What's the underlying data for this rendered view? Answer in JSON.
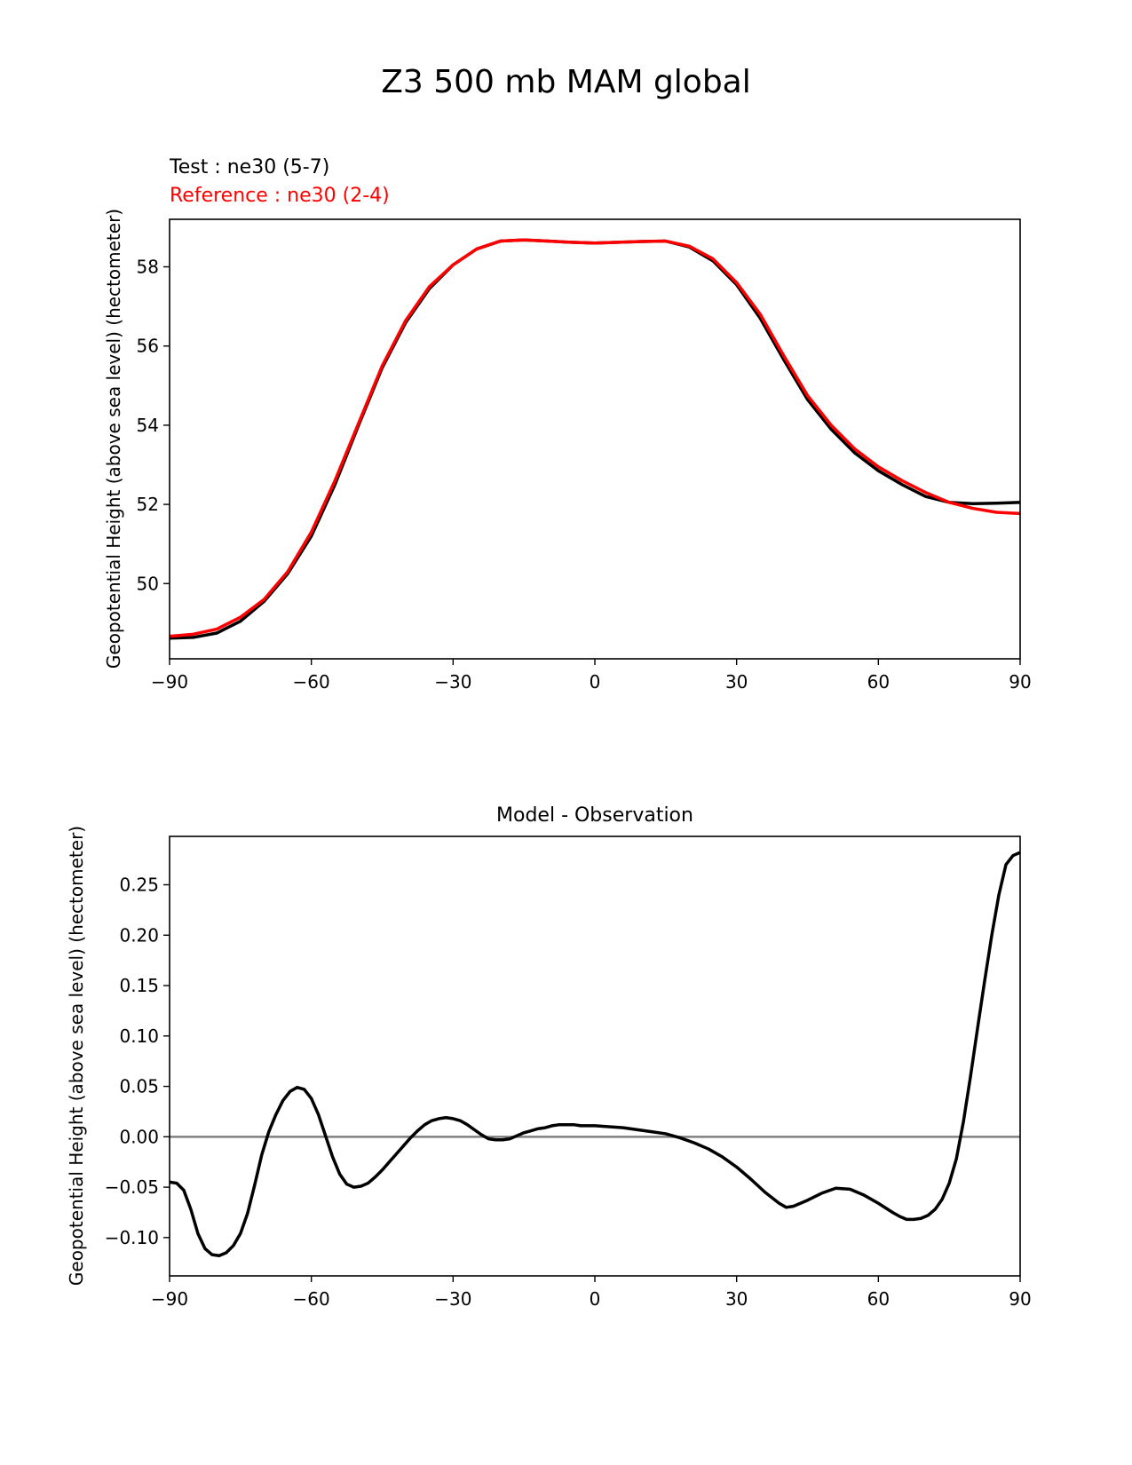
{
  "figure": {
    "title": "Z3 500 mb MAM global"
  },
  "chart_data": [
    {
      "type": "line",
      "legend": {
        "test": "Test : ne30 (5-7)",
        "reference": "Reference : ne30 (2-4)",
        "placement": "top-left"
      },
      "xlabel": "",
      "ylabel": "Geopotential Height (above sea level) (hectometer)",
      "xlim": [
        -90,
        90
      ],
      "ylim": [
        48.1,
        59.2
      ],
      "xticks": [
        -90,
        -60,
        -30,
        0,
        30,
        60,
        90
      ],
      "xtick_labels": [
        "−90",
        "−60",
        "−30",
        "0",
        "30",
        "60",
        "90"
      ],
      "yticks": [
        50,
        52,
        54,
        56,
        58
      ],
      "ytick_labels": [
        "50",
        "52",
        "54",
        "56",
        "58"
      ],
      "grid": false,
      "series": [
        {
          "name": "Test : ne30 (5-7)",
          "color": "#000000",
          "x": [
            -90,
            -85,
            -80,
            -75,
            -70,
            -65,
            -60,
            -55,
            -50,
            -45,
            -40,
            -35,
            -30,
            -25,
            -20,
            -15,
            -10,
            -5,
            0,
            5,
            10,
            15,
            20,
            25,
            30,
            35,
            40,
            45,
            50,
            55,
            60,
            65,
            70,
            75,
            80,
            85,
            90
          ],
          "y": [
            48.62,
            48.64,
            48.75,
            49.05,
            49.55,
            50.25,
            51.2,
            52.5,
            54.0,
            55.45,
            56.6,
            57.45,
            58.05,
            58.45,
            58.65,
            58.68,
            58.65,
            58.62,
            58.6,
            58.62,
            58.64,
            58.65,
            58.5,
            58.15,
            57.55,
            56.7,
            55.65,
            54.65,
            53.9,
            53.3,
            52.85,
            52.5,
            52.2,
            52.05,
            52.02,
            52.03,
            52.05
          ]
        },
        {
          "name": "Reference : ne30 (2-4)",
          "color": "#ff0000",
          "x": [
            -90,
            -85,
            -80,
            -75,
            -70,
            -65,
            -60,
            -55,
            -50,
            -45,
            -40,
            -35,
            -30,
            -25,
            -20,
            -15,
            -10,
            -5,
            0,
            5,
            10,
            15,
            20,
            25,
            30,
            35,
            40,
            45,
            50,
            55,
            60,
            65,
            70,
            75,
            80,
            85,
            90
          ],
          "y": [
            48.67,
            48.72,
            48.85,
            49.15,
            49.6,
            50.3,
            51.3,
            52.6,
            54.05,
            55.5,
            56.65,
            57.5,
            58.05,
            58.45,
            58.65,
            58.68,
            58.65,
            58.62,
            58.6,
            58.62,
            58.64,
            58.65,
            58.52,
            58.2,
            57.6,
            56.8,
            55.75,
            54.75,
            54.0,
            53.4,
            52.95,
            52.6,
            52.3,
            52.05,
            51.9,
            51.8,
            51.77
          ]
        }
      ]
    },
    {
      "type": "line",
      "title": "Model - Observation",
      "xlabel": "",
      "ylabel": "Geopotential Height (above sea level) (hectometer)",
      "xlim": [
        -90,
        90
      ],
      "ylim": [
        -0.138,
        0.298
      ],
      "xticks": [
        -90,
        -60,
        -30,
        0,
        30,
        60,
        90
      ],
      "xtick_labels": [
        "−90",
        "−60",
        "−30",
        "0",
        "30",
        "60",
        "90"
      ],
      "yticks": [
        -0.1,
        -0.05,
        0.0,
        0.05,
        0.1,
        0.15,
        0.2,
        0.25
      ],
      "ytick_labels": [
        "−0.10",
        "−0.05",
        "0.00",
        "0.05",
        "0.10",
        "0.15",
        "0.20",
        "0.25"
      ],
      "zero_line": {
        "value": 0,
        "color": "#808080"
      },
      "grid": false,
      "series": [
        {
          "color": "#000000",
          "x": [
            -90,
            -88.5,
            -87,
            -85.5,
            -84,
            -82.5,
            -81,
            -79.5,
            -78,
            -76.5,
            -75,
            -73.5,
            -72,
            -70.5,
            -69,
            -67.5,
            -66,
            -64.5,
            -63,
            -61.5,
            -60,
            -58.5,
            -57,
            -55.5,
            -54,
            -52.5,
            -51,
            -49.5,
            -48,
            -46.5,
            -45,
            -43.5,
            -42,
            -40.5,
            -39,
            -37.5,
            -36,
            -34.5,
            -33,
            -31.5,
            -30,
            -28.5,
            -27,
            -25.5,
            -24,
            -22.5,
            -21,
            -19.5,
            -18,
            -16.5,
            -15,
            -13.5,
            -12,
            -10.5,
            -9,
            -7.5,
            -6,
            -4.5,
            -3,
            -1.5,
            0,
            3,
            6,
            9,
            12,
            15,
            18,
            21,
            24,
            27,
            30,
            33,
            36,
            39,
            40.5,
            42,
            45,
            48,
            51,
            54,
            57,
            60,
            63,
            64.5,
            66,
            67.5,
            69,
            70.5,
            72,
            73.5,
            75,
            76.5,
            78,
            79.5,
            81,
            82.5,
            84,
            85.5,
            87,
            88.5,
            90
          ],
          "y": [
            -0.045,
            -0.046,
            -0.053,
            -0.072,
            -0.096,
            -0.111,
            -0.117,
            -0.118,
            -0.115,
            -0.108,
            -0.096,
            -0.076,
            -0.048,
            -0.018,
            0.005,
            0.022,
            0.036,
            0.045,
            0.049,
            0.047,
            0.038,
            0.022,
            0.001,
            -0.02,
            -0.037,
            -0.047,
            -0.05,
            -0.049,
            -0.046,
            -0.04,
            -0.033,
            -0.025,
            -0.017,
            -0.009,
            -0.001,
            0.006,
            0.012,
            0.016,
            0.018,
            0.019,
            0.018,
            0.016,
            0.012,
            0.007,
            0.002,
            -0.002,
            -0.003,
            -0.003,
            -0.002,
            0.001,
            0.004,
            0.006,
            0.008,
            0.009,
            0.011,
            0.012,
            0.012,
            0.012,
            0.011,
            0.011,
            0.011,
            0.01,
            0.009,
            0.007,
            0.005,
            0.003,
            -0.001,
            -0.006,
            -0.012,
            -0.02,
            -0.03,
            -0.042,
            -0.055,
            -0.066,
            -0.07,
            -0.069,
            -0.063,
            -0.056,
            -0.051,
            -0.052,
            -0.058,
            -0.066,
            -0.075,
            -0.079,
            -0.082,
            -0.082,
            -0.081,
            -0.078,
            -0.072,
            -0.062,
            -0.046,
            -0.022,
            0.015,
            0.06,
            0.108,
            0.155,
            0.2,
            0.24,
            0.27,
            0.279,
            0.282
          ]
        }
      ]
    }
  ]
}
